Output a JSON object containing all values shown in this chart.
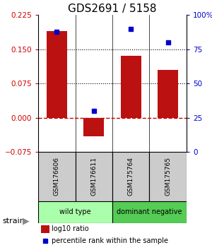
{
  "title": "GDS2691 / 5158",
  "samples": [
    "GSM176606",
    "GSM176611",
    "GSM175764",
    "GSM175765"
  ],
  "log10_ratio": [
    0.19,
    -0.04,
    0.135,
    0.105
  ],
  "percentile_rank": [
    88,
    30,
    90,
    80
  ],
  "left_ylim": [
    -0.075,
    0.225
  ],
  "right_ylim": [
    0,
    100
  ],
  "left_ticks": [
    -0.075,
    0,
    0.075,
    0.15,
    0.225
  ],
  "right_ticks": [
    0,
    25,
    50,
    75,
    100
  ],
  "right_tick_labels": [
    "0",
    "25",
    "50",
    "75",
    "100%"
  ],
  "hline_dotted": [
    0.075,
    0.15
  ],
  "bar_color": "#bb1111",
  "dot_color": "#0000cc",
  "bar_width": 0.55,
  "groups": [
    {
      "label": "wild type",
      "indices": [
        0,
        1
      ],
      "color": "#aaffaa"
    },
    {
      "label": "dominant negative",
      "indices": [
        2,
        3
      ],
      "color": "#55cc55"
    }
  ],
  "sample_box_color": "#cccccc",
  "legend_bar_label": "log10 ratio",
  "legend_dot_label": "percentile rank within the sample",
  "strain_label": "strain",
  "title_fontsize": 11,
  "left_tick_color": "#cc0000",
  "right_tick_color": "#0000cc",
  "zero_line_color": "#cc0000",
  "dotted_line_color": "#000000"
}
